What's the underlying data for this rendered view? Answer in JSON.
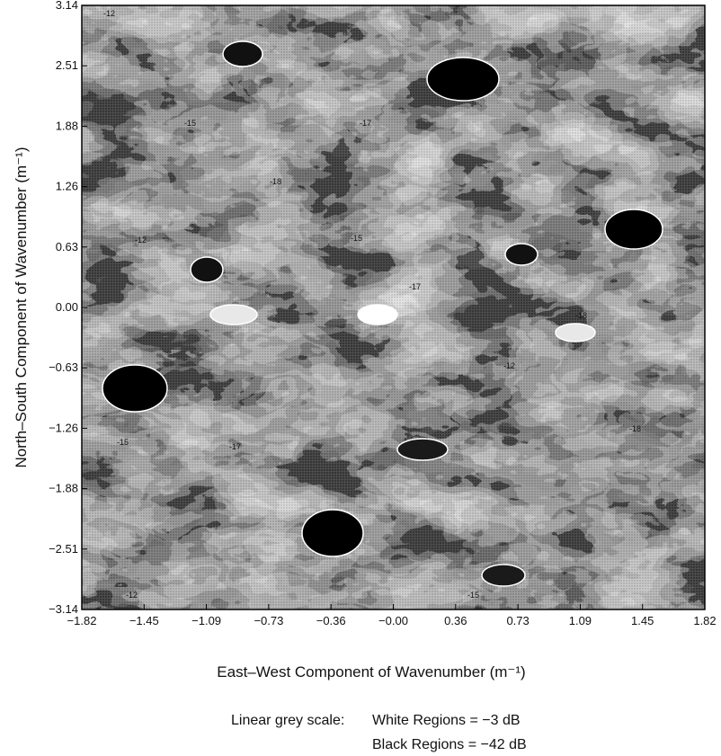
{
  "chart_data": {
    "type": "heatmap",
    "title": "",
    "xlabel": "East–West Component of Wavenumber (m⁻¹)",
    "ylabel": "North–South Component of Wavenumber (m⁻¹)",
    "xlim": [
      -1.82,
      1.82
    ],
    "ylim": [
      -3.14,
      3.14
    ],
    "x_ticks": [
      "−1.82",
      "−1.45",
      "−1.09",
      "−0.73",
      "−0.36",
      "−0.00",
      "0.36",
      "0.73",
      "1.09",
      "1.45",
      "1.82"
    ],
    "y_ticks": [
      "3.14",
      "2.51",
      "1.88",
      "1.26",
      "0.63",
      "0.00",
      "−0.63",
      "−1.26",
      "−1.88",
      "−2.51",
      "−3.14"
    ],
    "color_scale": "linear grey",
    "scale_min_db": -42,
    "scale_max_db": -3,
    "contour_labels": [
      "-12",
      "-15",
      "-17",
      "-18"
    ],
    "legend": {
      "caption": "Linear grey scale:",
      "white": "White Regions = −3 dB",
      "black": "Black Regions = −42 dB"
    },
    "colors": {
      "white": "#ffffff",
      "black": "#000000",
      "mid": "#8c8c8c"
    }
  }
}
